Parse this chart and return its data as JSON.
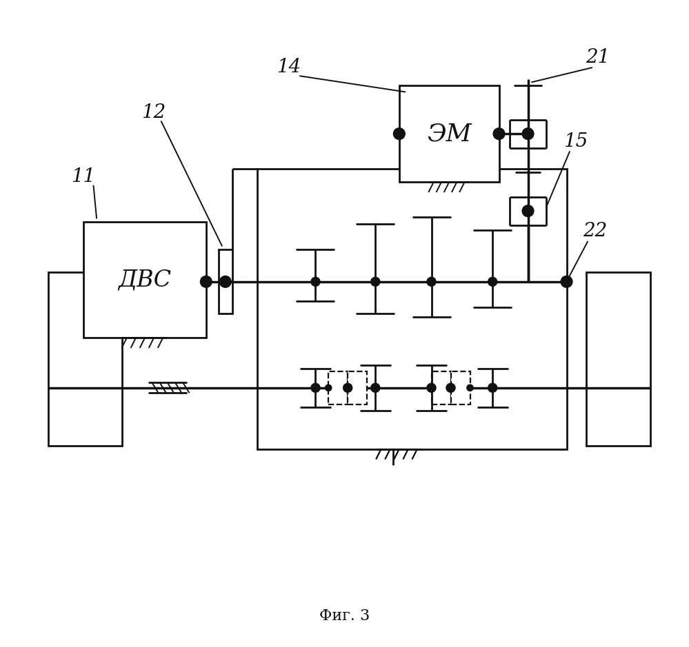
{
  "bg_color": "#ffffff",
  "line_color": "#111111",
  "title": "Фиг. 3",
  "fig_width": 9.99,
  "fig_height": 9.39,
  "dpi": 100,
  "lw_main": 2.0,
  "lw_thin": 1.4,
  "dot_r": 0.007,
  "label_fs": 20,
  "text_fs": 22
}
